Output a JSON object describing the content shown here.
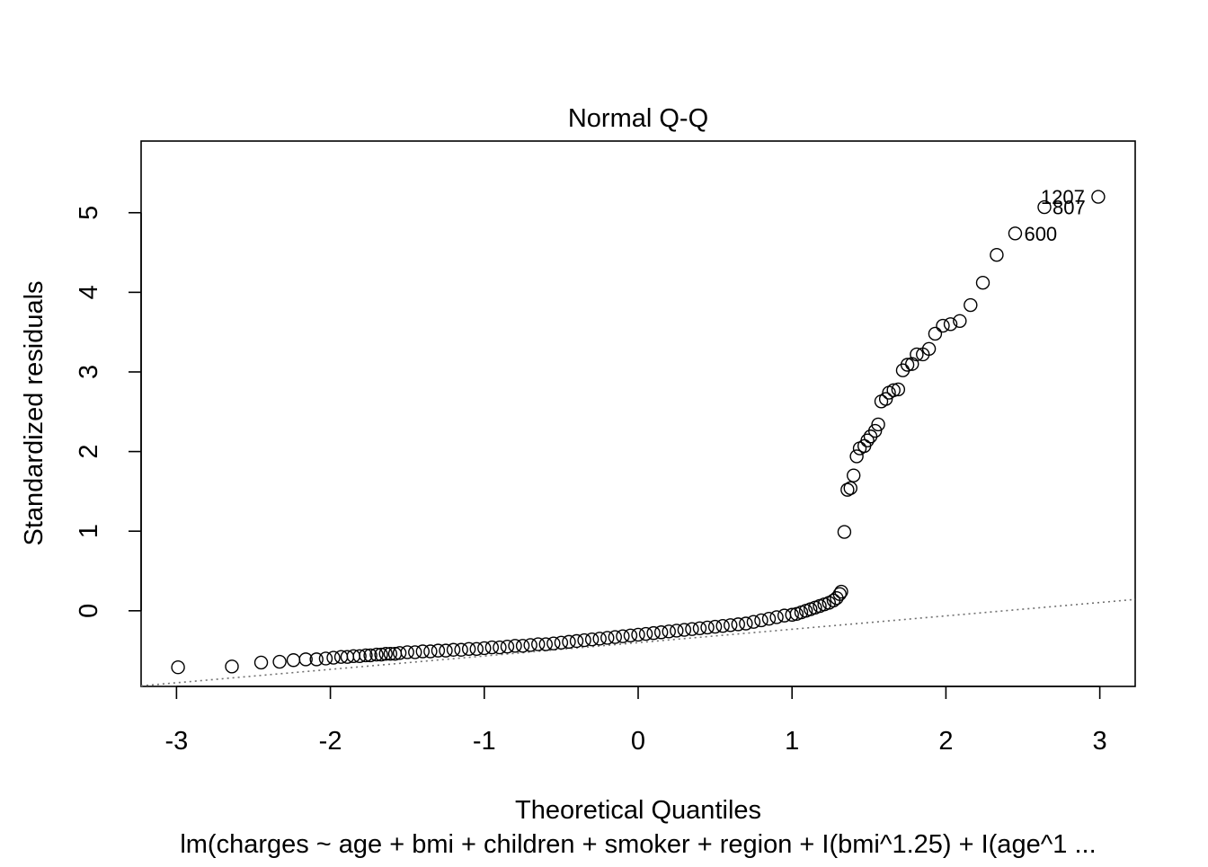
{
  "chart_data": {
    "type": "scatter",
    "title": "Normal Q-Q",
    "xlabel": "Theoretical Quantiles",
    "ylabel": "Standardized residuals",
    "subtitle": "lm(charges ~ age + bmi + children + smoker + region + I(bmi^1.25) + I(age^1 ...",
    "xlim": [
      -3.23,
      3.23
    ],
    "ylim": [
      -0.95,
      5.9
    ],
    "x_ticks": [
      -3,
      -2,
      -1,
      0,
      1,
      2,
      3
    ],
    "y_ticks": [
      0,
      1,
      2,
      3,
      4,
      5
    ],
    "x_tick_labels": [
      "-3",
      "-2",
      "-1",
      "0",
      "1",
      "2",
      "3"
    ],
    "y_tick_labels": [
      "0",
      "1",
      "2",
      "3",
      "4",
      "5"
    ],
    "grid": false,
    "reference_line": {
      "slope": 0.168,
      "intercept": -0.4,
      "style": "dotted",
      "color": "#707070"
    },
    "point_labels": [
      {
        "label": "1207",
        "x": 2.99,
        "y": 5.2
      },
      {
        "label": "807",
        "x": 2.64,
        "y": 5.07
      },
      {
        "label": "600",
        "x": 2.45,
        "y": 4.74
      }
    ],
    "series": [
      {
        "values": [
          [
            -2.99,
            -0.71
          ],
          [
            -2.64,
            -0.7
          ],
          [
            -2.45,
            -0.65
          ],
          [
            -2.33,
            -0.64
          ],
          [
            -2.24,
            -0.62
          ],
          [
            -2.16,
            -0.61
          ],
          [
            -2.09,
            -0.61
          ],
          [
            -2.03,
            -0.6
          ],
          [
            -1.98,
            -0.59
          ],
          [
            -1.93,
            -0.58
          ],
          [
            -1.89,
            -0.58
          ],
          [
            -1.85,
            -0.57
          ],
          [
            -1.81,
            -0.57
          ],
          [
            -1.77,
            -0.56
          ],
          [
            -1.74,
            -0.56
          ],
          [
            -1.7,
            -0.55
          ],
          [
            -1.67,
            -0.55
          ],
          [
            -1.64,
            -0.54
          ],
          [
            -1.61,
            -0.54
          ],
          [
            -1.58,
            -0.54
          ],
          [
            -1.55,
            -0.53
          ],
          [
            -1.5,
            -0.52
          ],
          [
            -1.45,
            -0.52
          ],
          [
            -1.4,
            -0.51
          ],
          [
            -1.35,
            -0.51
          ],
          [
            -1.3,
            -0.5
          ],
          [
            -1.25,
            -0.5
          ],
          [
            -1.2,
            -0.49
          ],
          [
            -1.15,
            -0.49
          ],
          [
            -1.1,
            -0.48
          ],
          [
            -1.05,
            -0.48
          ],
          [
            -1.0,
            -0.47
          ],
          [
            -0.95,
            -0.46
          ],
          [
            -0.9,
            -0.46
          ],
          [
            -0.85,
            -0.45
          ],
          [
            -0.8,
            -0.44
          ],
          [
            -0.75,
            -0.44
          ],
          [
            -0.7,
            -0.43
          ],
          [
            -0.65,
            -0.42
          ],
          [
            -0.6,
            -0.42
          ],
          [
            -0.55,
            -0.41
          ],
          [
            -0.5,
            -0.4
          ],
          [
            -0.45,
            -0.39
          ],
          [
            -0.4,
            -0.38
          ],
          [
            -0.35,
            -0.37
          ],
          [
            -0.3,
            -0.36
          ],
          [
            -0.25,
            -0.35
          ],
          [
            -0.2,
            -0.34
          ],
          [
            -0.15,
            -0.33
          ],
          [
            -0.1,
            -0.32
          ],
          [
            -0.05,
            -0.31
          ],
          [
            0.0,
            -0.3
          ],
          [
            0.05,
            -0.29
          ],
          [
            0.1,
            -0.28
          ],
          [
            0.15,
            -0.27
          ],
          [
            0.2,
            -0.26
          ],
          [
            0.25,
            -0.25
          ],
          [
            0.3,
            -0.24
          ],
          [
            0.35,
            -0.23
          ],
          [
            0.4,
            -0.22
          ],
          [
            0.45,
            -0.21
          ],
          [
            0.5,
            -0.2
          ],
          [
            0.55,
            -0.19
          ],
          [
            0.6,
            -0.18
          ],
          [
            0.65,
            -0.17
          ],
          [
            0.7,
            -0.16
          ],
          [
            0.75,
            -0.14
          ],
          [
            0.8,
            -0.12
          ],
          [
            0.85,
            -0.1
          ],
          [
            0.9,
            -0.08
          ],
          [
            0.95,
            -0.06
          ],
          [
            1.0,
            -0.05
          ],
          [
            1.03,
            -0.04
          ],
          [
            1.06,
            -0.02
          ],
          [
            1.09,
            0.0
          ],
          [
            1.12,
            0.02
          ],
          [
            1.15,
            0.04
          ],
          [
            1.18,
            0.06
          ],
          [
            1.21,
            0.08
          ],
          [
            1.24,
            0.1
          ],
          [
            1.27,
            0.13
          ],
          [
            1.29,
            0.16
          ],
          [
            1.31,
            0.21
          ],
          [
            1.32,
            0.24
          ],
          [
            1.34,
            0.99
          ],
          [
            1.36,
            1.52
          ],
          [
            1.38,
            1.54
          ],
          [
            1.4,
            1.7
          ],
          [
            1.42,
            1.94
          ],
          [
            1.44,
            2.04
          ],
          [
            1.47,
            2.07
          ],
          [
            1.49,
            2.14
          ],
          [
            1.51,
            2.19
          ],
          [
            1.54,
            2.26
          ],
          [
            1.56,
            2.34
          ],
          [
            1.58,
            2.63
          ],
          [
            1.61,
            2.66
          ],
          [
            1.63,
            2.74
          ],
          [
            1.66,
            2.77
          ],
          [
            1.69,
            2.78
          ],
          [
            1.72,
            3.02
          ],
          [
            1.75,
            3.09
          ],
          [
            1.78,
            3.1
          ],
          [
            1.81,
            3.22
          ],
          [
            1.85,
            3.22
          ],
          [
            1.89,
            3.29
          ],
          [
            1.93,
            3.48
          ],
          [
            1.98,
            3.58
          ],
          [
            2.03,
            3.6
          ],
          [
            2.09,
            3.64
          ],
          [
            2.16,
            3.84
          ],
          [
            2.24,
            4.12
          ],
          [
            2.33,
            4.47
          ],
          [
            2.45,
            4.74
          ],
          [
            2.64,
            5.07
          ],
          [
            2.99,
            5.2
          ]
        ]
      }
    ]
  }
}
